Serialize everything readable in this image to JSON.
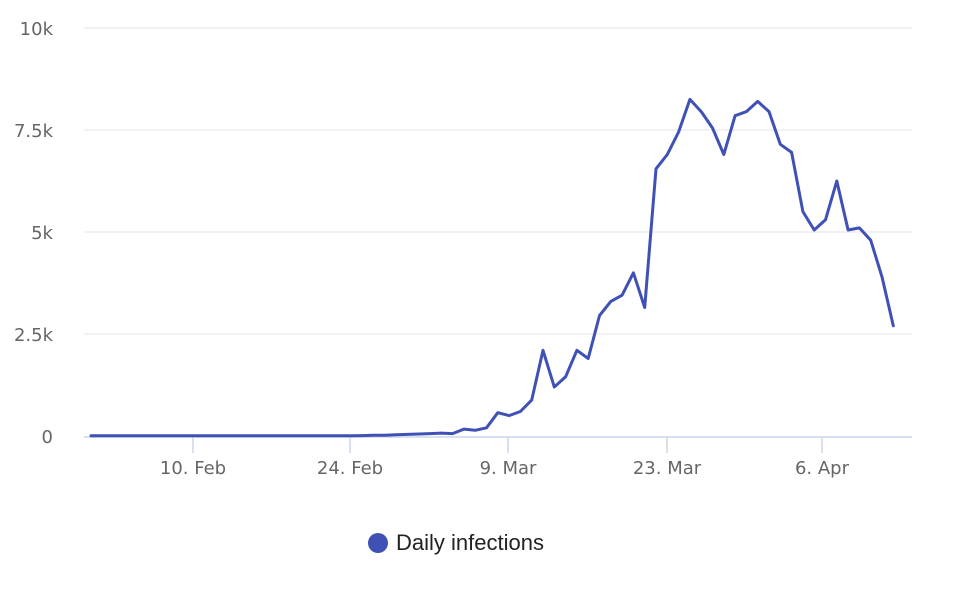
{
  "chart_data": {
    "type": "line",
    "title": "",
    "xlabel": "",
    "ylabel": "",
    "ylim": [
      0,
      10000
    ],
    "y_ticks": [
      "0",
      "2.5k",
      "5k",
      "7.5k",
      "10k"
    ],
    "y_tick_values": [
      0,
      2500,
      5000,
      7500,
      10000
    ],
    "x_ticks": [
      "10. Feb",
      "24. Feb",
      "9. Mar",
      "23. Mar",
      "6. Apr"
    ],
    "grid": true,
    "legend_position": "bottom",
    "series": [
      {
        "name": "Daily infections",
        "color": "#3f51b5",
        "start_date": "31 Jan",
        "values": [
          5,
          5,
          5,
          5,
          5,
          5,
          5,
          5,
          5,
          5,
          5,
          5,
          5,
          5,
          5,
          5,
          5,
          5,
          5,
          5,
          5,
          5,
          5,
          5,
          10,
          20,
          20,
          30,
          40,
          50,
          60,
          70,
          60,
          170,
          140,
          200,
          570,
          500,
          600,
          880,
          2100,
          1200,
          1450,
          2100,
          1900,
          2950,
          3300,
          3450,
          4000,
          3150,
          6550,
          6900,
          7450,
          8250,
          7950,
          7550,
          6900,
          7850,
          7950,
          8200,
          7950,
          7150,
          6950,
          5500,
          5050,
          5300,
          6250,
          5050,
          5100,
          4800,
          3900,
          2700
        ]
      }
    ]
  },
  "legend": {
    "items": [
      {
        "label": "Daily infections",
        "color": "#3f51b5"
      }
    ]
  }
}
